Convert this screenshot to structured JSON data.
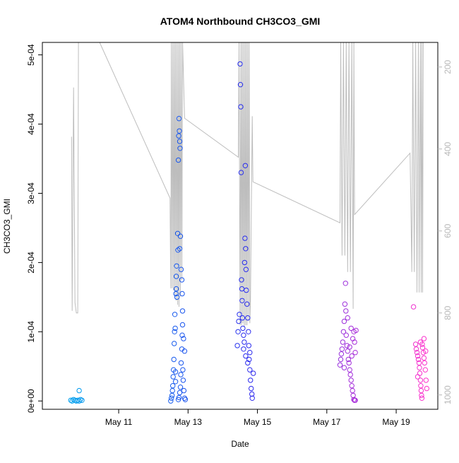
{
  "chart_data": {
    "type": "scatter",
    "title": "ATOM4 Northbound CH3CO3_GMI",
    "xlabel": "Date",
    "ylabel": "CH3CO3_GMI",
    "x_ticks": [
      "May 11",
      "May 13",
      "May 15",
      "May 17",
      "May 19"
    ],
    "x_tick_values": [
      11,
      13,
      15,
      17,
      19
    ],
    "xlim": [
      8.8,
      20.2
    ],
    "y_ticks": [
      "0e+00",
      "1e-04",
      "2e-04",
      "3e-04",
      "4e-04",
      "5e-04"
    ],
    "y_tick_values": [
      0,
      0.0001,
      0.0002,
      0.0003,
      0.0004,
      0.0005
    ],
    "ylim": [
      -1.2e-05,
      0.000518
    ],
    "y2_ticks": [
      "200",
      "400",
      "600",
      "800",
      "1000"
    ],
    "y2_tick_values": [
      200,
      400,
      600,
      800,
      1000
    ],
    "y2lim": [
      1035,
      140
    ],
    "grid": false,
    "legend": "none",
    "colors": {
      "points_start": "#00a0ee",
      "points_mid": "#2a2aee",
      "points_end": "#ff33cc",
      "pressure_line": "#bdbdbd",
      "axis": "#000000",
      "right_axis": "#b8b8b8"
    },
    "series": [
      {
        "values": [
          [
            9.62,
            1e-06
          ],
          [
            9.66,
            0.0
          ],
          [
            9.7,
            2e-06
          ],
          [
            9.74,
            1e-06
          ],
          [
            9.78,
            0.0
          ],
          [
            9.82,
            1e-06
          ],
          [
            9.86,
            0.0
          ],
          [
            9.9,
            2e-06
          ],
          [
            9.94,
            1e-06
          ],
          [
            9.86,
            1.5e-05
          ],
          [
            12.5,
            0.0
          ],
          [
            12.52,
            4e-06
          ],
          [
            12.54,
            8e-06
          ],
          [
            12.55,
            1.5e-05
          ],
          [
            12.56,
            2.2e-05
          ],
          [
            12.57,
            3.5e-05
          ],
          [
            12.58,
            4.5e-05
          ],
          [
            12.59,
            6e-05
          ],
          [
            12.6,
            8.3e-05
          ],
          [
            12.61,
            0.0001
          ],
          [
            12.62,
            0.000125
          ],
          [
            12.63,
            0.000105
          ],
          [
            12.64,
            4.2e-05
          ],
          [
            12.64,
            2.8e-05
          ],
          [
            12.65,
            0.000155
          ],
          [
            12.66,
            0.000162
          ],
          [
            12.66,
            0.00018
          ],
          [
            12.67,
            0.000195
          ],
          [
            12.68,
            0.00015
          ],
          [
            12.7,
            0.000242
          ],
          [
            12.71,
            0.000218
          ],
          [
            12.72,
            0.000348
          ],
          [
            12.73,
            0.000383
          ],
          [
            12.74,
            0.000408
          ],
          [
            12.75,
            0.00039
          ],
          [
            12.76,
            0.000375
          ],
          [
            12.77,
            0.000365
          ],
          [
            12.72,
            2e-06
          ],
          [
            12.74,
            5e-06
          ],
          [
            12.76,
            1.2e-05
          ],
          [
            12.78,
            2e-05
          ],
          [
            12.79,
            3.8e-05
          ],
          [
            12.8,
            5.5e-05
          ],
          [
            12.82,
            7.5e-05
          ],
          [
            12.83,
            9.5e-05
          ],
          [
            12.84,
            0.00011
          ],
          [
            12.85,
            4.5e-05
          ],
          [
            12.86,
            3e-05
          ],
          [
            12.88,
            1.5e-05
          ],
          [
            12.9,
            4e-06
          ],
          [
            12.92,
            2e-06
          ],
          [
            12.78,
            0.000238
          ],
          [
            12.76,
            0.00022
          ],
          [
            12.8,
            0.00019
          ],
          [
            12.82,
            0.000175
          ],
          [
            12.83,
            0.000155
          ],
          [
            12.84,
            0.00013
          ],
          [
            12.87,
            9e-05
          ],
          [
            12.9,
            7.2e-05
          ],
          [
            14.42,
            8e-05
          ],
          [
            14.44,
            0.0001
          ],
          [
            14.46,
            0.000115
          ],
          [
            14.48,
            0.000125
          ],
          [
            14.5,
            0.000487
          ],
          [
            14.51,
            0.000457
          ],
          [
            14.52,
            0.000425
          ],
          [
            14.53,
            0.00033
          ],
          [
            14.54,
            0.000175
          ],
          [
            14.55,
            0.000162
          ],
          [
            14.56,
            0.000145
          ],
          [
            14.57,
            0.00012
          ],
          [
            14.58,
            0.000105
          ],
          [
            14.6,
            9.5e-05
          ],
          [
            14.62,
            8.5e-05
          ],
          [
            14.63,
            0.0002
          ],
          [
            14.64,
            0.000235
          ],
          [
            14.65,
            0.00034
          ],
          [
            14.66,
            0.00022
          ],
          [
            14.67,
            0.00019
          ],
          [
            14.68,
            0.00016
          ],
          [
            14.7,
            0.00014
          ],
          [
            14.72,
            0.00012
          ],
          [
            14.74,
            0.0001
          ],
          [
            14.75,
            8e-05
          ],
          [
            14.76,
            6e-05
          ],
          [
            14.78,
            4.5e-05
          ],
          [
            14.8,
            3e-05
          ],
          [
            14.82,
            1.8e-05
          ],
          [
            14.84,
            1e-05
          ],
          [
            14.85,
            4e-06
          ],
          [
            14.6,
            7.5e-05
          ],
          [
            14.66,
            6.5e-05
          ],
          [
            14.72,
            5.5e-05
          ],
          [
            14.78,
            7e-05
          ],
          [
            14.88,
            4e-05
          ],
          [
            17.38,
            5.2e-05
          ],
          [
            17.4,
            6e-05
          ],
          [
            17.42,
            6.8e-05
          ],
          [
            17.44,
            7.5e-05
          ],
          [
            17.46,
            8.5e-05
          ],
          [
            17.48,
            0.0001
          ],
          [
            17.5,
            0.000115
          ],
          [
            17.52,
            0.00014
          ],
          [
            17.54,
            0.00017
          ],
          [
            17.55,
            0.00013
          ],
          [
            17.56,
            9.5e-05
          ],
          [
            17.58,
            8e-05
          ],
          [
            17.6,
            7.2e-05
          ],
          [
            17.62,
            6e-05
          ],
          [
            17.64,
            5.5e-05
          ],
          [
            17.66,
            4.5e-05
          ],
          [
            17.68,
            3.8e-05
          ],
          [
            17.7,
            3e-05
          ],
          [
            17.72,
            2.2e-05
          ],
          [
            17.74,
            1.5e-05
          ],
          [
            17.76,
            8e-06
          ],
          [
            17.78,
            2e-06
          ],
          [
            17.8,
            1e-06
          ],
          [
            17.82,
            1e-06
          ],
          [
            17.6,
            0.00012
          ],
          [
            17.7,
            0.000105
          ],
          [
            17.75,
            9e-05
          ],
          [
            17.78,
            0.0001
          ],
          [
            17.8,
            8.5e-05
          ],
          [
            17.82,
            7e-05
          ],
          [
            17.72,
            6.5e-05
          ],
          [
            17.66,
            7.8e-05
          ],
          [
            17.84,
            0.000102
          ],
          [
            17.5,
            4.8e-05
          ],
          [
            19.5,
            0.000136
          ],
          [
            19.56,
            8.2e-05
          ],
          [
            19.58,
            7.5e-05
          ],
          [
            19.6,
            7e-05
          ],
          [
            19.62,
            6.5e-05
          ],
          [
            19.64,
            6e-05
          ],
          [
            19.66,
            5.5e-05
          ],
          [
            19.67,
            4.8e-05
          ],
          [
            19.68,
            4e-05
          ],
          [
            19.7,
            3e-05
          ],
          [
            19.71,
            2.2e-05
          ],
          [
            19.72,
            1.5e-05
          ],
          [
            19.73,
            8e-06
          ],
          [
            19.74,
            4e-06
          ],
          [
            19.75,
            8.2e-05
          ],
          [
            19.76,
            7.7e-05
          ],
          [
            19.78,
            7e-05
          ],
          [
            19.8,
            6.2e-05
          ],
          [
            19.82,
            5.5e-05
          ],
          [
            19.84,
            4.5e-05
          ],
          [
            19.86,
            3e-05
          ],
          [
            19.88,
            1.8e-05
          ],
          [
            19.7,
            8.5e-05
          ],
          [
            19.8,
            9e-05
          ],
          [
            19.62,
            3.5e-05
          ],
          [
            19.85,
            7.2e-05
          ]
        ]
      }
    ],
    "pressure_line_series": {
      "values": [
        [
          9.64,
          370
        ],
        [
          9.66,
          795
        ],
        [
          9.7,
          250
        ],
        [
          9.74,
          775
        ],
        [
          9.78,
          800
        ],
        [
          9.82,
          800
        ],
        [
          9.84,
          140
        ],
        [
          10.45,
          140
        ],
        [
          12.48,
          520
        ],
        [
          12.5,
          740
        ],
        [
          12.52,
          140
        ],
        [
          12.54,
          740
        ],
        [
          12.56,
          140
        ],
        [
          12.58,
          745
        ],
        [
          12.6,
          140
        ],
        [
          12.62,
          760
        ],
        [
          12.64,
          140
        ],
        [
          12.66,
          770
        ],
        [
          12.68,
          140
        ],
        [
          12.7,
          780
        ],
        [
          12.72,
          140
        ],
        [
          12.74,
          785
        ],
        [
          12.76,
          140
        ],
        [
          12.78,
          760
        ],
        [
          12.8,
          140
        ],
        [
          12.82,
          720
        ],
        [
          12.84,
          140
        ],
        [
          12.9,
          325
        ],
        [
          14.45,
          420
        ],
        [
          14.47,
          140
        ],
        [
          14.5,
          830
        ],
        [
          14.52,
          140
        ],
        [
          14.54,
          830
        ],
        [
          14.56,
          140
        ],
        [
          14.58,
          825
        ],
        [
          14.6,
          140
        ],
        [
          14.62,
          835
        ],
        [
          14.64,
          140
        ],
        [
          14.66,
          830
        ],
        [
          14.68,
          140
        ],
        [
          14.7,
          830
        ],
        [
          14.72,
          140
        ],
        [
          14.74,
          820
        ],
        [
          14.76,
          140
        ],
        [
          14.78,
          825
        ],
        [
          14.8,
          770
        ],
        [
          14.85,
          320
        ],
        [
          14.87,
          480
        ],
        [
          17.38,
          580
        ],
        [
          17.4,
          140
        ],
        [
          17.44,
          660
        ],
        [
          17.48,
          140
        ],
        [
          17.52,
          660
        ],
        [
          17.56,
          140
        ],
        [
          17.6,
          700
        ],
        [
          17.64,
          140
        ],
        [
          17.68,
          700
        ],
        [
          17.72,
          140
        ],
        [
          17.76,
          790
        ],
        [
          17.78,
          140
        ],
        [
          17.8,
          560
        ],
        [
          19.4,
          410
        ],
        [
          19.45,
          700
        ],
        [
          19.48,
          140
        ],
        [
          19.52,
          700
        ],
        [
          19.56,
          140
        ],
        [
          19.6,
          750
        ],
        [
          19.64,
          140
        ],
        [
          19.66,
          750
        ],
        [
          19.7,
          140
        ],
        [
          19.72,
          750
        ],
        [
          19.74,
          140
        ],
        [
          19.76,
          750
        ],
        [
          19.78,
          140
        ]
      ]
    }
  }
}
